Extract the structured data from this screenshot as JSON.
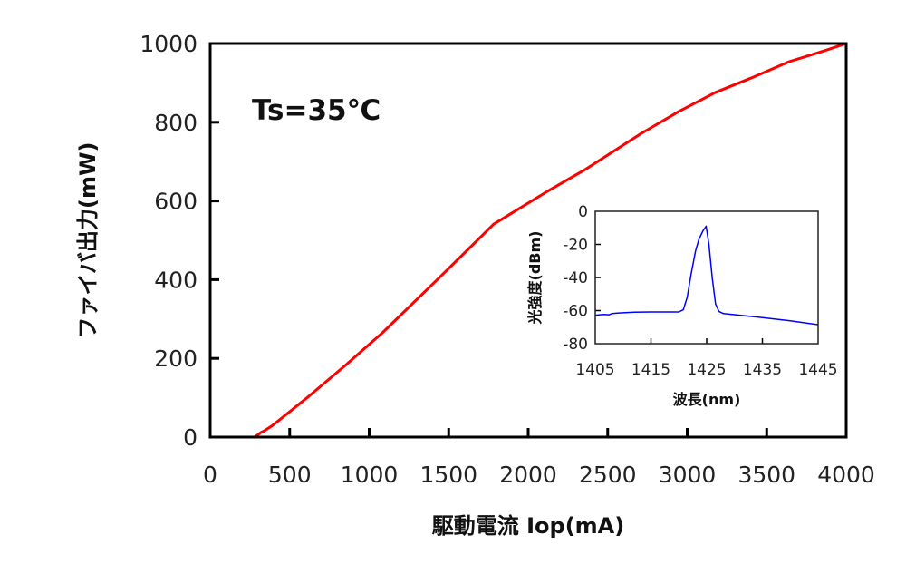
{
  "chart_data": [
    {
      "type": "line",
      "xlabel": "駆動電流 Iop(mA)",
      "ylabel": "ファイバ出力(mW)",
      "annotation": "Ts=35℃",
      "xlim": [
        0,
        4000
      ],
      "ylim": [
        0,
        1000
      ],
      "xticks": [
        0,
        500,
        1000,
        1500,
        2000,
        2500,
        3000,
        3500,
        4000
      ],
      "yticks": [
        0,
        200,
        400,
        600,
        800,
        1000
      ],
      "grid": false,
      "color": "#ff0000",
      "x": [
        0,
        280,
        320,
        340,
        387,
        430,
        621,
        855,
        1083,
        1436,
        1783,
        2131,
        2359,
        2712,
        2946,
        3179,
        3400,
        3641,
        3850,
        4000
      ],
      "y": [
        0,
        0,
        12,
        16,
        28,
        42,
        104,
        184,
        265,
        403,
        541,
        627,
        680,
        772,
        827,
        876,
        912,
        954,
        980,
        1000
      ]
    },
    {
      "type": "line",
      "inset": true,
      "xlabel": "波長(nm)",
      "ylabel": "光強度(dBm)",
      "xlim": [
        1405,
        1445
      ],
      "ylim": [
        -80,
        0
      ],
      "xticks": [
        1405,
        1415,
        1425,
        1435,
        1445
      ],
      "yticks": [
        0,
        -20,
        -40,
        -60,
        -80
      ],
      "grid": false,
      "color": "#0000ff",
      "x": [
        1405,
        1406.5,
        1407.5,
        1408,
        1409,
        1410,
        1412,
        1415,
        1418,
        1420,
        1420.8,
        1421.5,
        1422.2,
        1423,
        1423.6,
        1424.3,
        1424.9,
        1425.4,
        1426,
        1426.6,
        1427.2,
        1428,
        1431,
        1435,
        1440,
        1445
      ],
      "y": [
        -62.8,
        -62.3,
        -62.5,
        -61.8,
        -61.5,
        -61.3,
        -61,
        -60.8,
        -60.8,
        -60.8,
        -59.5,
        -52,
        -38,
        -24,
        -17,
        -12,
        -9,
        -20,
        -40,
        -56,
        -60.5,
        -61.8,
        -62.8,
        -64.3,
        -66.2,
        -68.5
      ]
    }
  ]
}
